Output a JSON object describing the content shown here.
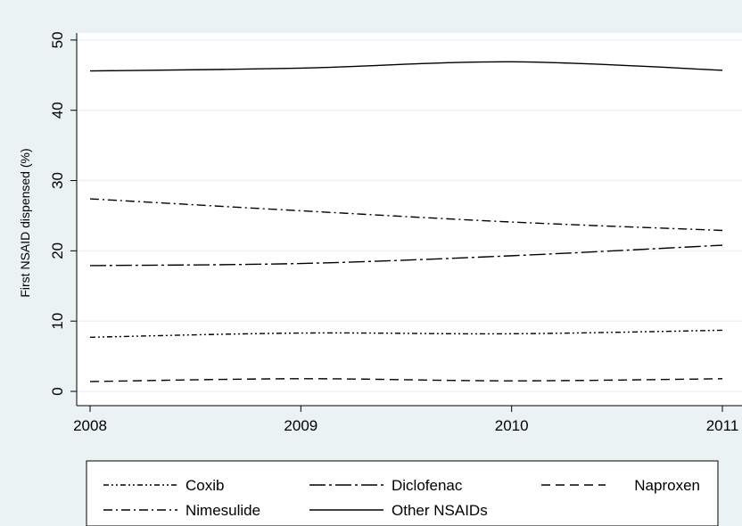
{
  "chart_data": {
    "type": "line",
    "title": "",
    "xlabel": "",
    "ylabel": "First NSAID dispensed (%)",
    "x": [
      2008,
      2009,
      2010,
      2011
    ],
    "xticks": [
      "2008",
      "2009",
      "2010",
      "2011"
    ],
    "yticks": [
      "0",
      "10",
      "20",
      "30",
      "40",
      "50"
    ],
    "xlim": [
      2008,
      2011
    ],
    "ylim": [
      0,
      51
    ],
    "grid": "horizontal",
    "legend_position": "bottom",
    "series": [
      {
        "name": "Coxib",
        "values": [
          7.7,
          8.3,
          8.2,
          8.7
        ],
        "dash": "dash-dot-dot"
      },
      {
        "name": "Diclofenac",
        "values": [
          17.9,
          18.2,
          19.3,
          20.8
        ],
        "dash": "long-dash-dot"
      },
      {
        "name": "Naproxen",
        "values": [
          1.4,
          1.8,
          1.5,
          1.8
        ],
        "dash": "dash"
      },
      {
        "name": "Nimesulide",
        "values": [
          27.4,
          25.7,
          24.1,
          22.9
        ],
        "dash": "dash-dot"
      },
      {
        "name": "Other NSAIDs",
        "values": [
          45.6,
          46.0,
          46.9,
          45.7
        ],
        "dash": "solid"
      }
    ],
    "colors": {
      "background": "#eaf2f3",
      "plot": "#ffffff",
      "line": "#000000",
      "grid": "#eaf2f3"
    }
  }
}
